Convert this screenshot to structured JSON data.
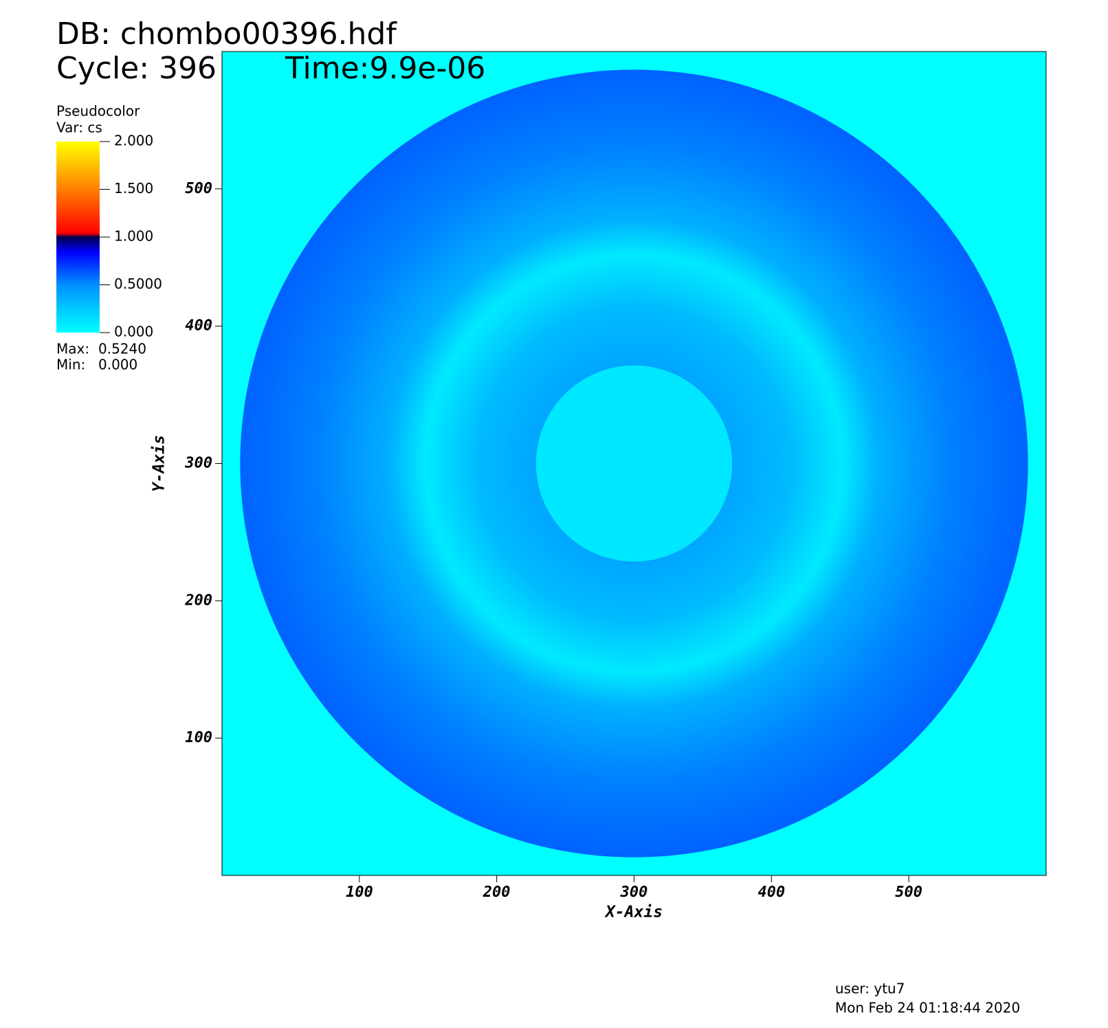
{
  "chart_data": {
    "type": "pseudocolor",
    "title": "DB: chombo00396.hdf",
    "cycle": "Cycle: 396",
    "time": "Time:9.9e-06",
    "legend_title": "Pseudocolor",
    "legend_var": "Var: cs",
    "max_caption": "Max:",
    "max": {
      "value": 0.524,
      "label": "0.5240"
    },
    "min_caption": "Min:",
    "min": {
      "value": 0,
      "label": "0.000"
    },
    "colorbar_lim": [
      0,
      2
    ],
    "colorbar_ticks": [
      {
        "value": 0,
        "label": "0.000"
      },
      {
        "value": 0.5,
        "label": "0.5000"
      },
      {
        "value": 1,
        "label": "1.000"
      },
      {
        "value": 1.5,
        "label": "1.500"
      },
      {
        "value": 2,
        "label": "2.000"
      }
    ],
    "x_label": "X-Axis",
    "y_label": "Y-Axis",
    "xlim": [
      0,
      600
    ],
    "ylim": [
      0,
      600
    ],
    "xticks": [
      100,
      200,
      300,
      400,
      500
    ],
    "yticks": [
      100,
      200,
      300,
      400,
      500
    ],
    "user": "user: ytu7",
    "date": "Mon Feb 24 01:18:44 2020"
  }
}
